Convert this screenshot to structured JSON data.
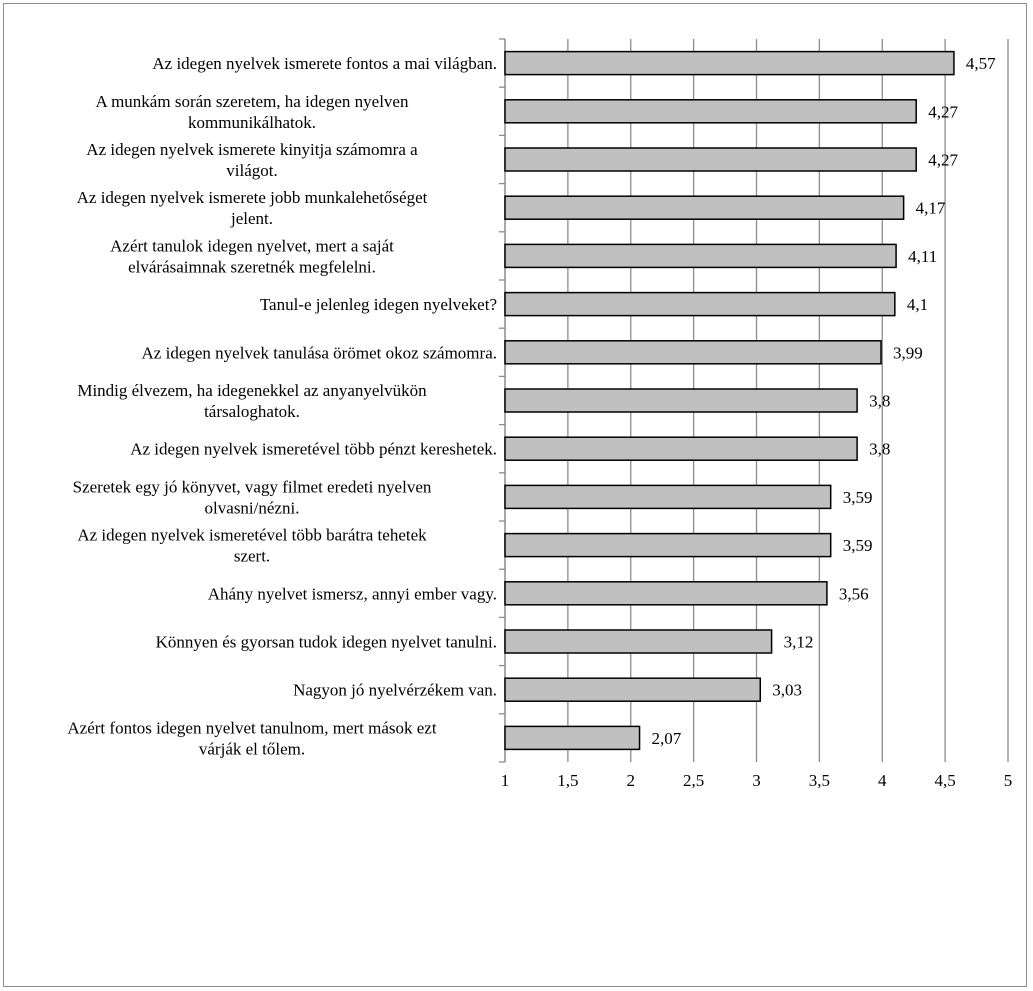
{
  "chart_data": {
    "type": "bar",
    "orientation": "horizontal",
    "categories": [
      [
        "Az idegen nyelvek ismerete fontos a mai világban."
      ],
      [
        "A munkám során szeretem, ha idegen nyelven",
        "kommunikálhatok."
      ],
      [
        "Az idegen nyelvek ismerete kinyitja számomra a",
        "világot."
      ],
      [
        "Az idegen nyelvek ismerete jobb munkalehetőséget",
        "jelent."
      ],
      [
        "Azért tanulok idegen nyelvet, mert a saját",
        "elvárásaimnak szeretnék megfelelni."
      ],
      [
        "Tanul-e jelenleg idegen nyelveket?"
      ],
      [
        "Az idegen nyelvek tanulása örömet okoz számomra."
      ],
      [
        "Mindig élvezem, ha idegenekkel az anyanyelvükön",
        "társaloghatok."
      ],
      [
        "Az idegen nyelvek ismeretével több pénzt kereshetek."
      ],
      [
        "Szeretek egy jó könyvet, vagy filmet eredeti nyelven",
        "olvasni/nézni."
      ],
      [
        "Az idegen nyelvek ismeretével több barátra tehetek",
        "szert."
      ],
      [
        "Ahány nyelvet ismersz, annyi ember vagy."
      ],
      [
        "Könnyen és gyorsan tudok idegen nyelvet tanulni."
      ],
      [
        "Nagyon jó nyelvérzékem van."
      ],
      [
        "Azért fontos idegen nyelvet tanulnom, mert mások ezt",
        "várják el tőlem."
      ]
    ],
    "values": [
      4.57,
      4.27,
      4.27,
      4.17,
      4.11,
      4.1,
      3.99,
      3.8,
      3.8,
      3.59,
      3.59,
      3.56,
      3.12,
      3.03,
      2.07
    ],
    "value_labels": [
      "4,57",
      "4,27",
      "4,27",
      "4,17",
      "4,11",
      "4,1",
      "3,99",
      "3,8",
      "3,8",
      "3,59",
      "3,59",
      "3,56",
      "3,12",
      "3,03",
      "2,07"
    ],
    "xlim": [
      1,
      5
    ],
    "x_ticks": [
      1,
      1.5,
      2,
      2.5,
      3,
      3.5,
      4,
      4.5,
      5
    ],
    "x_tick_labels": [
      "1",
      "1,5",
      "2",
      "2,5",
      "3",
      "3,5",
      "4",
      "4,5",
      "5"
    ],
    "title": "",
    "xlabel": "",
    "ylabel": "",
    "grid": true,
    "legend": "none",
    "colors": {
      "bar_fill": "#c0c0c0",
      "bar_stroke": "#000000",
      "grid": "#8c8c8c",
      "frame": "#8c8c8c"
    }
  }
}
